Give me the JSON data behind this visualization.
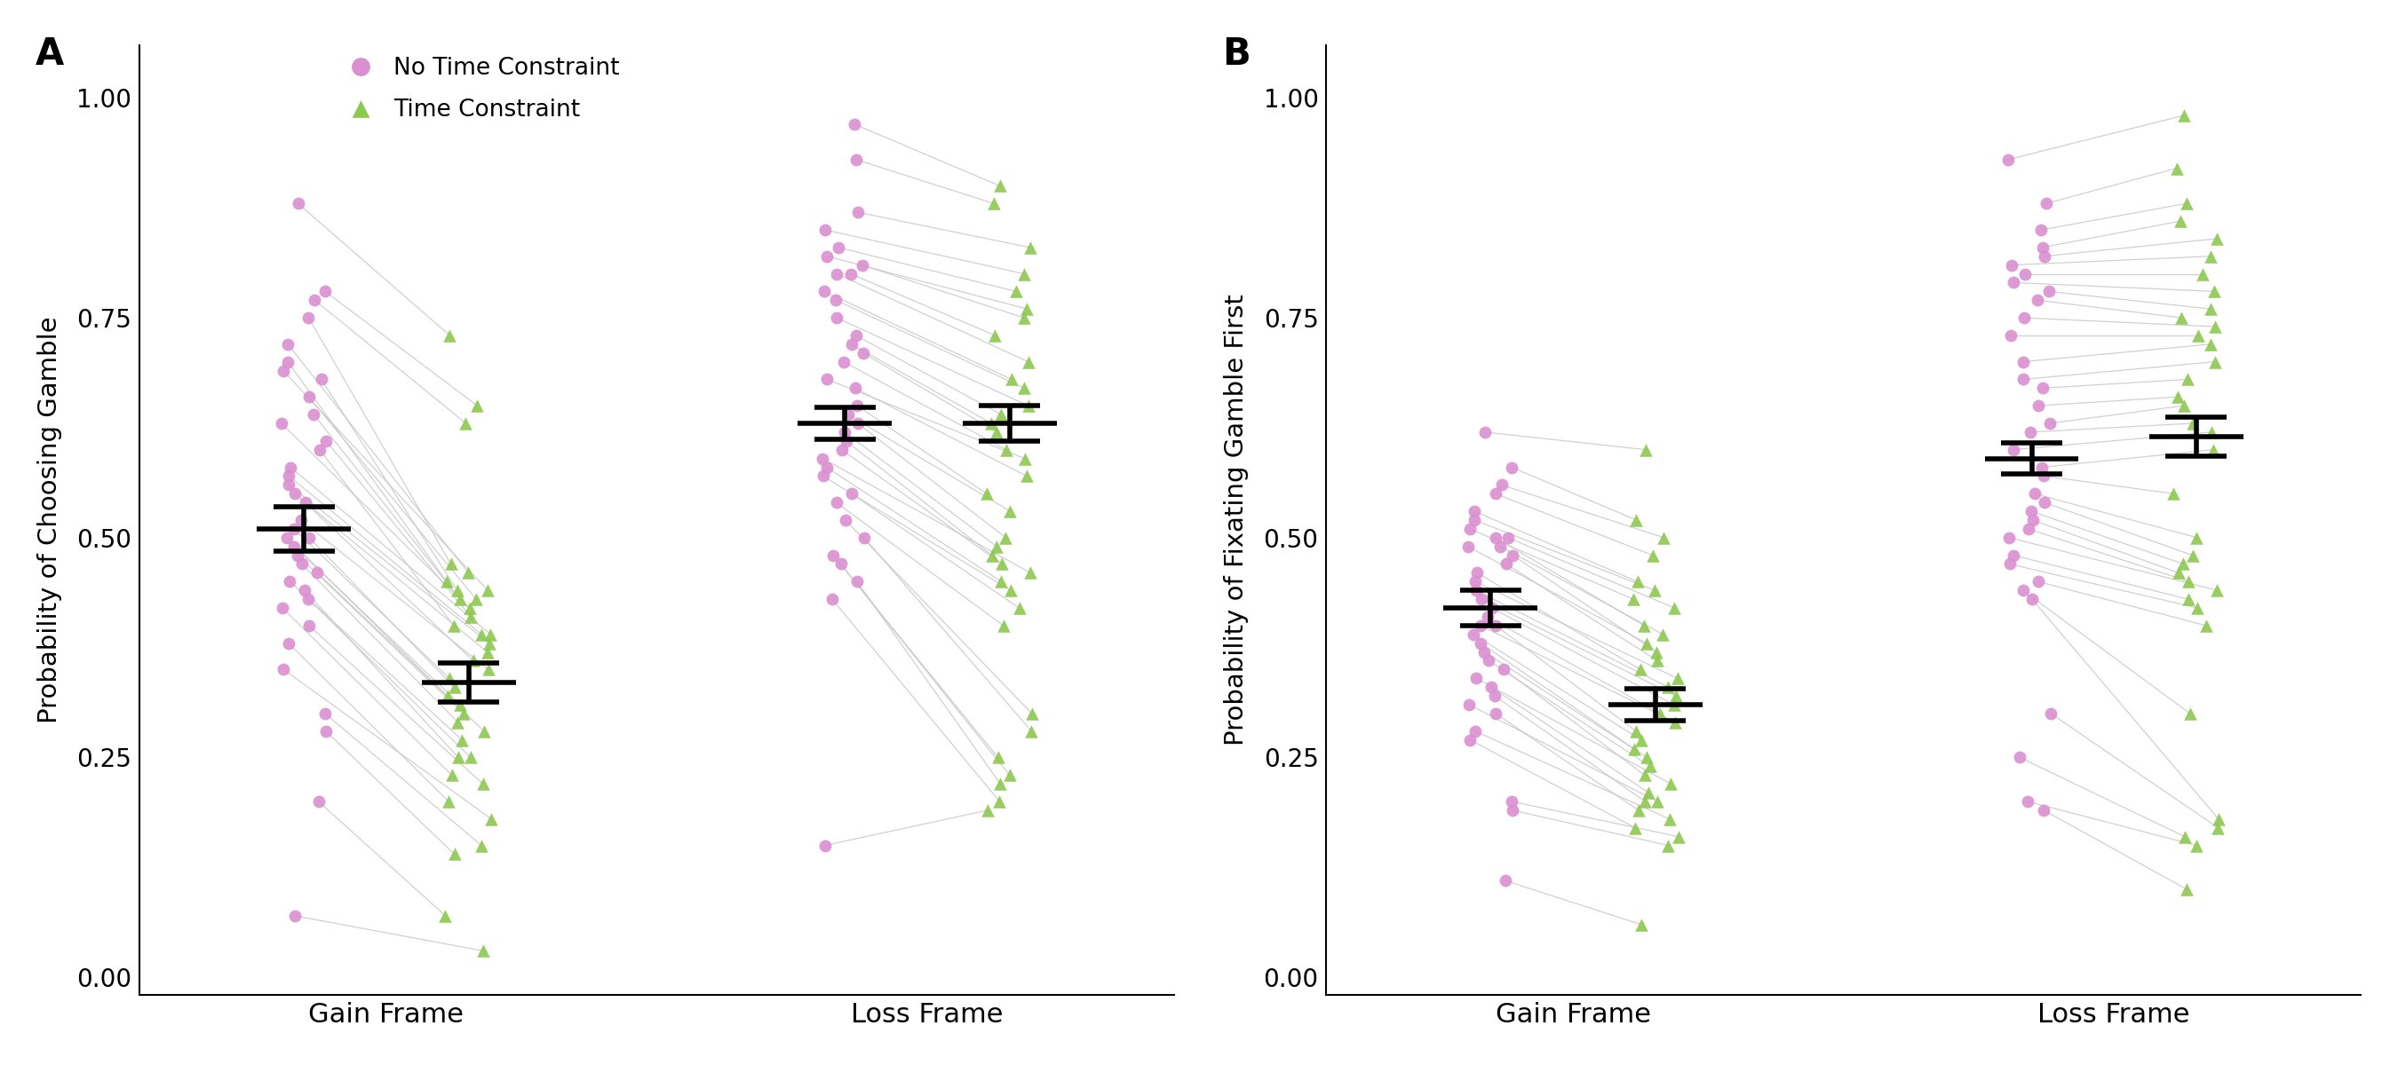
{
  "panel_A_title": "A",
  "panel_B_title": "B",
  "ylabel_A": "Probability of Choosing Gamble",
  "ylabel_B": "Probability of Fixating Gamble First",
  "xlabel_gain": "Gain Frame",
  "xlabel_loss": "Loss Frame",
  "legend_circle": "No Time Constraint",
  "legend_triangle": "Time Constraint",
  "color_circle": "#DA8FD0",
  "color_triangle": "#8DC850",
  "color_line": "#C8C8C8",
  "ylim": [
    -0.02,
    1.06
  ],
  "yticks": [
    0.0,
    0.25,
    0.5,
    0.75,
    1.0
  ],
  "panel_A": {
    "no_tc_gain": [
      0.88,
      0.78,
      0.77,
      0.75,
      0.72,
      0.7,
      0.69,
      0.68,
      0.66,
      0.64,
      0.63,
      0.61,
      0.6,
      0.58,
      0.57,
      0.56,
      0.55,
      0.54,
      0.52,
      0.51,
      0.5,
      0.5,
      0.49,
      0.48,
      0.47,
      0.46,
      0.45,
      0.44,
      0.43,
      0.42,
      0.4,
      0.38,
      0.35,
      0.3,
      0.28,
      0.2,
      0.07
    ],
    "tc_gain": [
      0.73,
      0.65,
      0.63,
      0.47,
      0.46,
      0.45,
      0.44,
      0.44,
      0.43,
      0.43,
      0.42,
      0.41,
      0.4,
      0.39,
      0.39,
      0.38,
      0.37,
      0.36,
      0.35,
      0.34,
      0.33,
      0.32,
      0.31,
      0.3,
      0.29,
      0.28,
      0.27,
      0.25,
      0.25,
      0.23,
      0.22,
      0.2,
      0.18,
      0.15,
      0.14,
      0.07,
      0.03
    ],
    "no_tc_loss": [
      0.97,
      0.93,
      0.87,
      0.85,
      0.83,
      0.82,
      0.81,
      0.8,
      0.8,
      0.78,
      0.77,
      0.75,
      0.73,
      0.72,
      0.71,
      0.7,
      0.68,
      0.67,
      0.65,
      0.64,
      0.63,
      0.62,
      0.61,
      0.6,
      0.59,
      0.58,
      0.57,
      0.55,
      0.54,
      0.52,
      0.5,
      0.48,
      0.47,
      0.45,
      0.43,
      0.15
    ],
    "tc_loss": [
      0.9,
      0.88,
      0.83,
      0.8,
      0.78,
      0.76,
      0.75,
      0.73,
      0.7,
      0.68,
      0.67,
      0.65,
      0.64,
      0.63,
      0.62,
      0.6,
      0.59,
      0.57,
      0.55,
      0.53,
      0.5,
      0.49,
      0.48,
      0.47,
      0.46,
      0.45,
      0.44,
      0.42,
      0.4,
      0.3,
      0.28,
      0.25,
      0.23,
      0.22,
      0.2,
      0.19
    ],
    "mean_no_tc_gain": 0.51,
    "se_no_tc_gain": 0.025,
    "mean_tc_gain": 0.335,
    "se_tc_gain": 0.022,
    "mean_no_tc_loss": 0.63,
    "se_no_tc_loss": 0.018,
    "mean_tc_loss": 0.63,
    "se_tc_loss": 0.02
  },
  "panel_B": {
    "no_tc_gain": [
      0.62,
      0.58,
      0.56,
      0.55,
      0.53,
      0.52,
      0.51,
      0.5,
      0.5,
      0.49,
      0.49,
      0.48,
      0.47,
      0.46,
      0.45,
      0.44,
      0.43,
      0.42,
      0.41,
      0.4,
      0.4,
      0.39,
      0.38,
      0.37,
      0.36,
      0.35,
      0.34,
      0.33,
      0.32,
      0.31,
      0.3,
      0.28,
      0.27,
      0.2,
      0.19,
      0.11
    ],
    "tc_gain": [
      0.6,
      0.52,
      0.5,
      0.48,
      0.45,
      0.44,
      0.43,
      0.42,
      0.4,
      0.39,
      0.38,
      0.37,
      0.36,
      0.35,
      0.34,
      0.33,
      0.32,
      0.31,
      0.3,
      0.29,
      0.28,
      0.27,
      0.26,
      0.25,
      0.24,
      0.23,
      0.22,
      0.21,
      0.2,
      0.2,
      0.19,
      0.18,
      0.17,
      0.16,
      0.15,
      0.06
    ],
    "no_tc_loss": [
      0.93,
      0.88,
      0.85,
      0.83,
      0.82,
      0.81,
      0.8,
      0.79,
      0.78,
      0.77,
      0.75,
      0.73,
      0.7,
      0.68,
      0.67,
      0.65,
      0.63,
      0.62,
      0.6,
      0.58,
      0.57,
      0.55,
      0.54,
      0.53,
      0.52,
      0.51,
      0.5,
      0.48,
      0.47,
      0.45,
      0.44,
      0.43,
      0.3,
      0.25,
      0.2,
      0.19
    ],
    "tc_loss": [
      0.98,
      0.92,
      0.88,
      0.86,
      0.84,
      0.82,
      0.8,
      0.78,
      0.76,
      0.75,
      0.74,
      0.73,
      0.72,
      0.7,
      0.68,
      0.66,
      0.65,
      0.63,
      0.62,
      0.6,
      0.55,
      0.5,
      0.48,
      0.47,
      0.46,
      0.45,
      0.44,
      0.43,
      0.42,
      0.4,
      0.3,
      0.18,
      0.17,
      0.16,
      0.15,
      0.1
    ],
    "mean_no_tc_gain": 0.42,
    "se_no_tc_gain": 0.02,
    "mean_tc_gain": 0.31,
    "se_tc_gain": 0.018,
    "mean_no_tc_loss": 0.59,
    "se_no_tc_loss": 0.018,
    "mean_tc_loss": 0.615,
    "se_tc_loss": 0.022
  }
}
